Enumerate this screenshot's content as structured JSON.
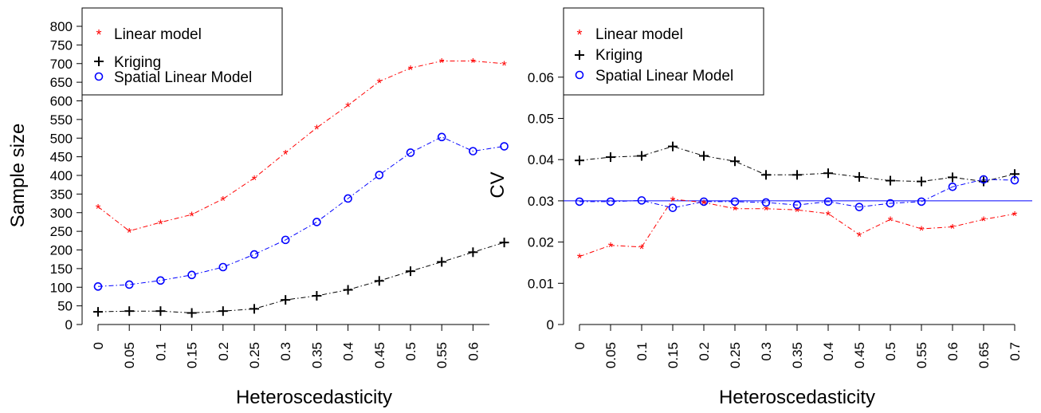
{
  "chart_data": [
    {
      "type": "line",
      "xlabel": "Heteroscedasticity",
      "ylabel": "Sample size",
      "x": [
        "0",
        "0.05",
        "0.1",
        "0.15",
        "0.2",
        "0.25",
        "0.3",
        "0.35",
        "0.4",
        "0.45",
        "0.5",
        "0.55",
        "0.6",
        "0.65"
      ],
      "x_tick_labels": [
        "0",
        "0.05",
        "0.1",
        "0.15",
        "0.2",
        "0.25",
        "0.3",
        "0.35",
        "0.4",
        "0.45",
        "0.5",
        "0.55",
        "0.6"
      ],
      "y_ticks": [
        0,
        50,
        100,
        150,
        200,
        250,
        300,
        350,
        400,
        450,
        500,
        550,
        600,
        650,
        700,
        750,
        800
      ],
      "ylim": [
        0,
        800
      ],
      "legend_position": "top-left",
      "series": [
        {
          "name": "Linear model",
          "color": "#ff0000",
          "marker": "star",
          "values": [
            316,
            251,
            274,
            295,
            337,
            393,
            461,
            528,
            588,
            652,
            688,
            707,
            707,
            700
          ]
        },
        {
          "name": "Kriging",
          "color": "#000000",
          "marker": "plus",
          "values": [
            34,
            36,
            36,
            31,
            36,
            42,
            66,
            77,
            93,
            117,
            143,
            168,
            194,
            220
          ]
        },
        {
          "name": "Spatial Linear Model",
          "color": "#0000ff",
          "marker": "circle",
          "values": [
            102,
            107,
            118,
            133,
            154,
            188,
            227,
            275,
            338,
            401,
            461,
            503,
            465,
            478
          ]
        }
      ]
    },
    {
      "type": "line",
      "xlabel": "Heteroscedasticity",
      "ylabel": "CV",
      "x": [
        "0",
        "0.05",
        "0.1",
        "0.15",
        "0.2",
        "0.25",
        "0.3",
        "0.35",
        "0.4",
        "0.45",
        "0.5",
        "0.55",
        "0.6",
        "0.65",
        "0.7"
      ],
      "x_tick_labels": [
        "0",
        "0.05",
        "0.1",
        "0.15",
        "0.2",
        "0.25",
        "0.3",
        "0.35",
        "0.4",
        "0.45",
        "0.5",
        "0.55",
        "0.6",
        "0.65",
        "0.7"
      ],
      "y_ticks": [
        "0",
        "0.01",
        "0.02",
        "0.03",
        "0.04",
        "0.05",
        "0.06"
      ],
      "ylim": [
        0,
        0.0675
      ],
      "reference_line": {
        "y": 0.03,
        "color": "#0000ff"
      },
      "legend_position": "top-left",
      "series": [
        {
          "name": "Linear model",
          "color": "#ff0000",
          "marker": "star",
          "values": [
            0.0165,
            0.0192,
            0.0188,
            0.0304,
            0.0296,
            0.0281,
            0.0281,
            0.0278,
            0.0269,
            0.0218,
            0.0255,
            0.0232,
            0.0237,
            0.0255,
            0.0268
          ]
        },
        {
          "name": "Kriging",
          "color": "#000000",
          "marker": "plus",
          "values": [
            0.0398,
            0.0406,
            0.0409,
            0.0432,
            0.0409,
            0.0396,
            0.0363,
            0.0363,
            0.0367,
            0.0358,
            0.0349,
            0.0347,
            0.0357,
            0.0347,
            0.0365
          ]
        },
        {
          "name": "Spatial Linear Model",
          "color": "#0000ff",
          "marker": "circle",
          "values": [
            0.0298,
            0.0298,
            0.0301,
            0.0283,
            0.0298,
            0.0298,
            0.0296,
            0.029,
            0.0298,
            0.0285,
            0.0294,
            0.0298,
            0.0334,
            0.0352,
            0.035
          ]
        }
      ]
    }
  ]
}
